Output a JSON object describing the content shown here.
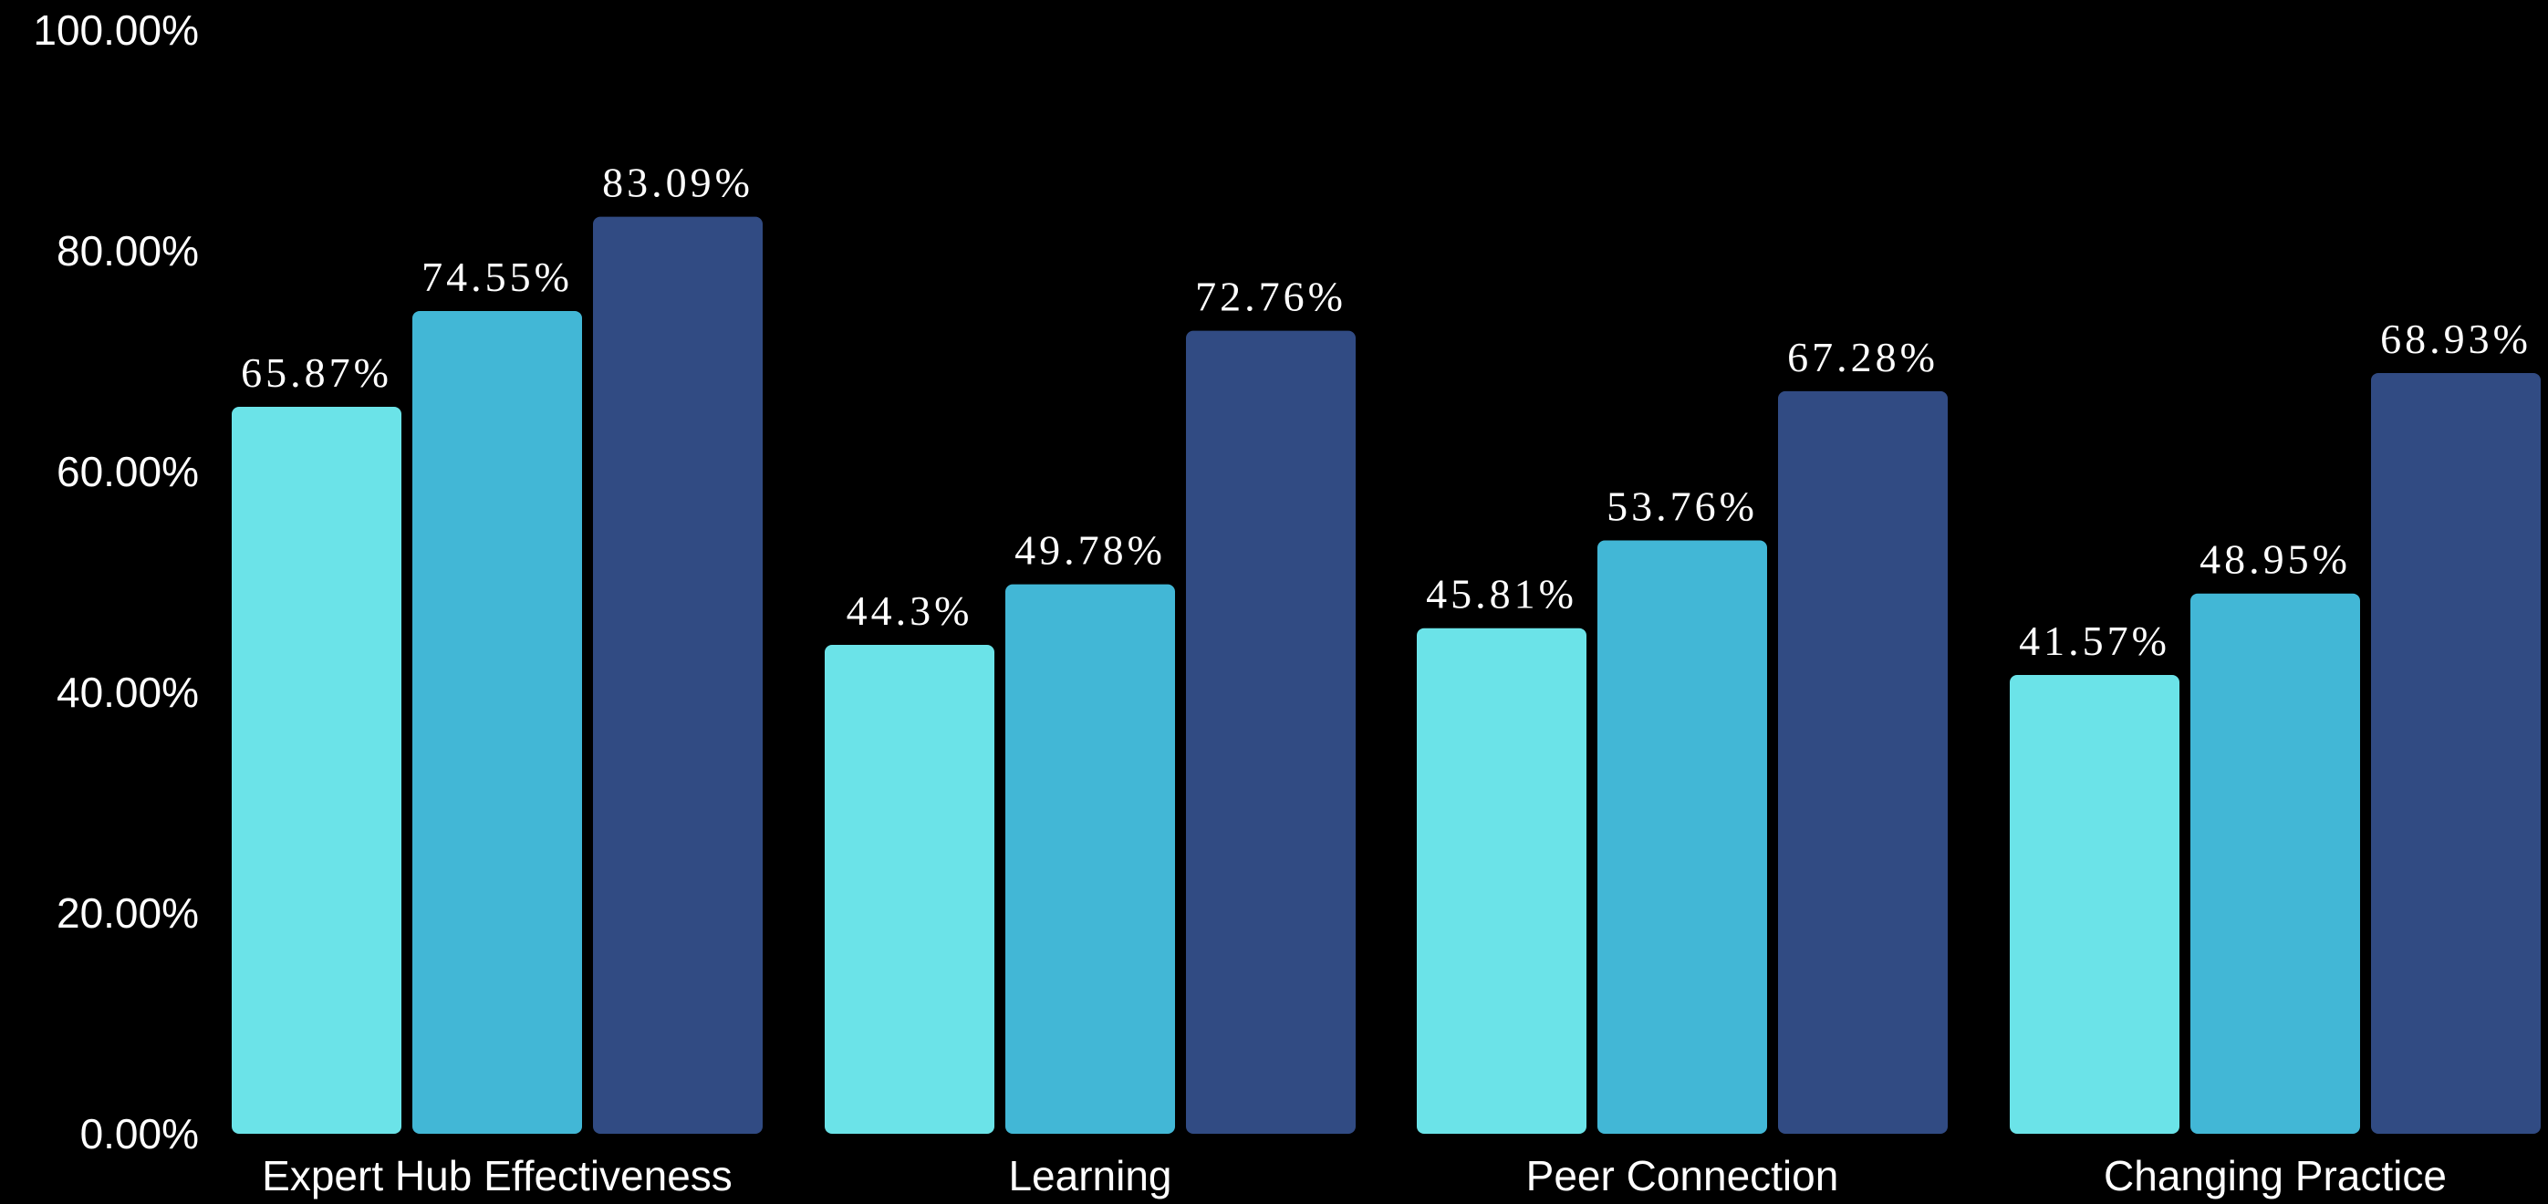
{
  "chart_data": {
    "type": "bar",
    "categories": [
      "Expert Hub Effectiveness",
      "Learning",
      "Peer Connection",
      "Changing Practice"
    ],
    "series": [
      {
        "values": [
          65.87,
          44.3,
          45.81,
          41.57
        ],
        "labels": [
          "65.87%",
          "44.3%",
          "45.81%",
          "41.57%"
        ],
        "color": "#6be3e8"
      },
      {
        "values": [
          74.55,
          49.78,
          53.76,
          48.95
        ],
        "labels": [
          "74.55%",
          "49.78%",
          "53.76%",
          "48.95%"
        ],
        "color": "#42b7d6"
      },
      {
        "values": [
          83.09,
          72.76,
          67.28,
          68.93
        ],
        "labels": [
          "83.09%",
          "72.76%",
          "67.28%",
          "68.93%"
        ],
        "color": "#314b83"
      }
    ],
    "y_ticks": [
      "0.00%",
      "20.00%",
      "40.00%",
      "60.00%",
      "80.00%",
      "100.00%"
    ],
    "ylim": [
      0,
      100
    ],
    "grid": false,
    "legend": "none",
    "background": "#000000",
    "text_color": "#ffffff"
  }
}
